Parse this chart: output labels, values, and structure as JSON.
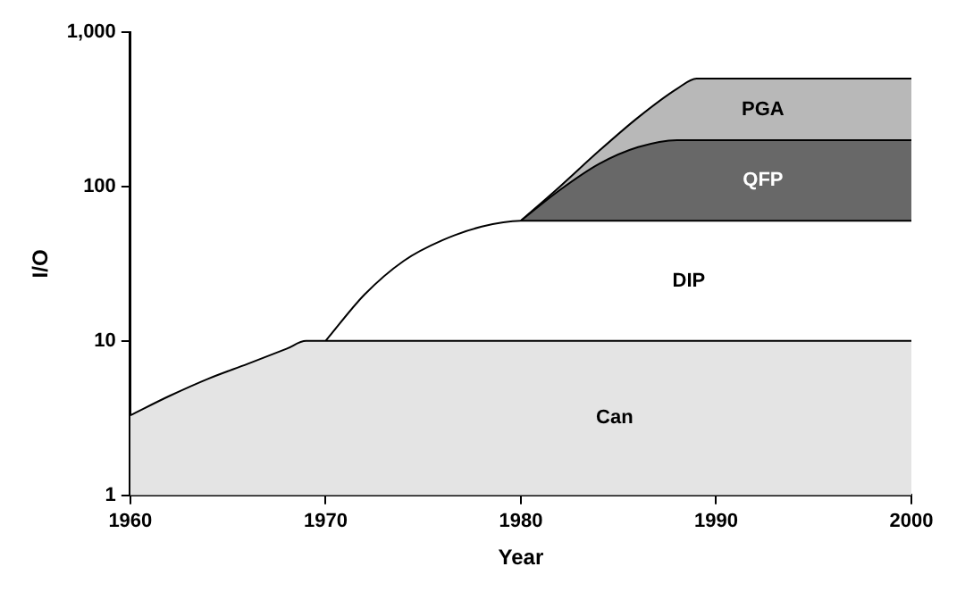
{
  "chart_data": {
    "type": "area",
    "xlabel": "Year",
    "ylabel": "I/O",
    "log": "y",
    "legend": false,
    "xlim": [
      1960,
      2000
    ],
    "xticks": [
      1960,
      1970,
      1980,
      1990,
      2000
    ],
    "ylim": [
      1,
      1000
    ],
    "yticks": [
      1,
      10,
      100,
      {
        "value": 1000,
        "label": "1,000"
      }
    ],
    "x": [
      1960,
      1962,
      1964,
      1966,
      1968,
      1969,
      1970,
      1972,
      1974,
      1976,
      1978,
      1980,
      1982,
      1984,
      1986,
      1988,
      1989,
      2000
    ],
    "series": [
      {
        "name": "Can",
        "color": "#e4e4e4",
        "values": [
          3.3,
          4.4,
          5.7,
          7.1,
          8.9,
          10,
          10,
          10,
          10,
          10,
          10,
          10,
          10,
          10,
          10,
          10,
          10,
          10
        ]
      },
      {
        "name": "DIP",
        "color": "#ffffff",
        "values": [
          null,
          null,
          null,
          null,
          null,
          null,
          10,
          20,
          33,
          45,
          55,
          60,
          60,
          60,
          60,
          60,
          60,
          60
        ]
      },
      {
        "name": "QFP",
        "color": "#686868",
        "values": [
          null,
          null,
          null,
          null,
          null,
          null,
          null,
          null,
          null,
          null,
          null,
          60,
          95,
          140,
          180,
          200,
          200,
          200
        ]
      },
      {
        "name": "PGA",
        "color": "#b8b8b8",
        "values": [
          null,
          null,
          null,
          null,
          null,
          null,
          null,
          null,
          null,
          null,
          null,
          60,
          100,
          170,
          280,
          430,
          500,
          500
        ]
      }
    ]
  }
}
